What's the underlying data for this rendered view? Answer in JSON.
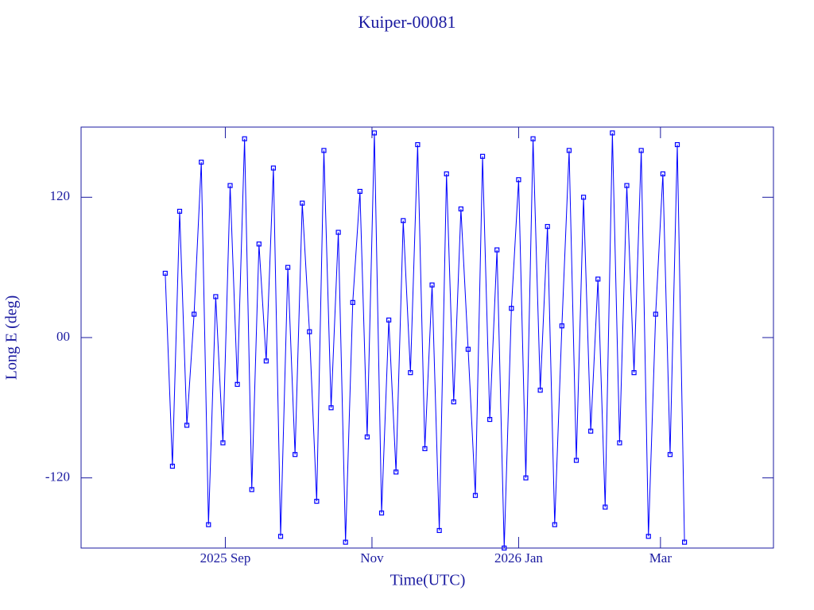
{
  "chart_data": {
    "type": "line",
    "title": "Kuiper-00081",
    "xlabel": "Time(UTC)",
    "ylabel": "Long E (deg)",
    "xlim": [
      -60,
      228
    ],
    "xticks": [
      {
        "value": 0,
        "label": "2025 Sep"
      },
      {
        "value": 61,
        "label": "Nov"
      },
      {
        "value": 122,
        "label": "2026 Jan"
      },
      {
        "value": 181,
        "label": "Mar"
      }
    ],
    "ylim": [
      -180,
      180
    ],
    "yticks": [
      -120,
      {
        "value": 0,
        "label": "00"
      },
      120
    ],
    "markers": true,
    "series": [
      {
        "color": "#0000ff",
        "x": [
          -25,
          -22,
          -19,
          -16,
          -13,
          -10,
          -7,
          -4,
          -1,
          2,
          5,
          8,
          11,
          14,
          17,
          20,
          23,
          26,
          29,
          32,
          35,
          38,
          41,
          44,
          47,
          50,
          53,
          56,
          59,
          62,
          65,
          68,
          71,
          74,
          77,
          80,
          83,
          86,
          89,
          92,
          95,
          98,
          101,
          104,
          107,
          110,
          113,
          116,
          119,
          122,
          125,
          128,
          131,
          134,
          137,
          140,
          143,
          146,
          149,
          152,
          155,
          158,
          161,
          164,
          167,
          170,
          173,
          176,
          179,
          182,
          185,
          188,
          191
        ],
        "values": [
          55,
          -110,
          108,
          -75,
          20,
          150,
          -160,
          35,
          -90,
          130,
          -40,
          170,
          -130,
          80,
          -20,
          145,
          -170,
          60,
          -100,
          115,
          5,
          -140,
          160,
          -60,
          90,
          -175,
          30,
          125,
          -85,
          175,
          -150,
          15,
          -115,
          100,
          -30,
          165,
          -95,
          45,
          -165,
          140,
          -55,
          110,
          -10,
          -135,
          155,
          -70,
          75,
          -180,
          25,
          135,
          -120,
          170,
          -45,
          95,
          -160,
          10,
          160,
          -105,
          120,
          -80,
          50,
          -145,
          175,
          -90,
          130,
          -30,
          160,
          -170,
          20,
          140,
          -100,
          165,
          -175
        ]
      }
    ]
  }
}
